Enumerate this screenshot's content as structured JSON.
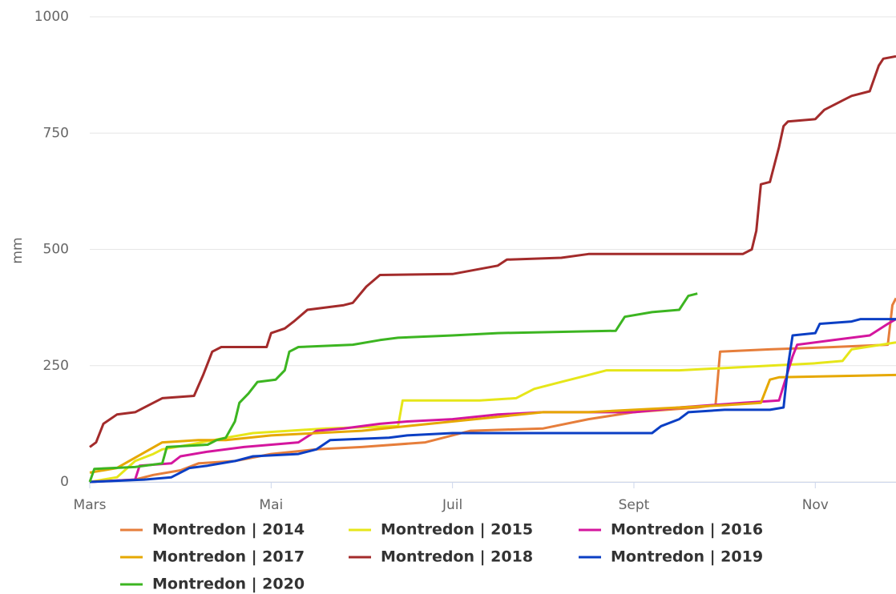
{
  "chart_data": {
    "type": "line",
    "ylabel": "mm",
    "xlim": [
      0,
      8.89
    ],
    "xticks": [
      {
        "value": 0,
        "label": "Mars"
      },
      {
        "value": 2,
        "label": "Mai"
      },
      {
        "value": 4,
        "label": "Juil"
      },
      {
        "value": 6,
        "label": "Sept"
      },
      {
        "value": 8,
        "label": "Nov"
      }
    ],
    "ylim": [
      0,
      1000
    ],
    "yticks": [
      0,
      250,
      500,
      750,
      1000
    ],
    "grid": true,
    "legend": "bottom",
    "series": [
      {
        "name": "Montredon | 2014",
        "color": "#e67e3b",
        "x": [
          0,
          0.5,
          0.7,
          1.0,
          1.2,
          1.6,
          2.0,
          2.5,
          3.0,
          3.7,
          4.2,
          5.0,
          5.5,
          6.0,
          6.7,
          6.9,
          6.95,
          7.5,
          8.2,
          8.8,
          8.85,
          8.89
        ],
        "values": [
          0,
          5,
          15,
          25,
          40,
          45,
          60,
          70,
          75,
          85,
          110,
          115,
          135,
          150,
          160,
          165,
          280,
          285,
          290,
          295,
          380,
          395
        ]
      },
      {
        "name": "Montredon | 2015",
        "color": "#e6e619",
        "x": [
          0,
          0.3,
          0.5,
          0.7,
          0.8,
          1.1,
          1.5,
          1.8,
          2.2,
          2.6,
          3.4,
          3.45,
          4.3,
          4.7,
          4.9,
          5.2,
          5.5,
          5.7,
          6.5,
          7.0,
          7.5,
          8.0,
          8.3,
          8.4,
          8.89
        ],
        "values": [
          0,
          10,
          45,
          60,
          70,
          80,
          95,
          105,
          110,
          115,
          120,
          175,
          175,
          180,
          200,
          215,
          230,
          240,
          240,
          245,
          250,
          255,
          260,
          285,
          300
        ]
      },
      {
        "name": "Montredon | 2016",
        "color": "#d4169e",
        "x": [
          0,
          0.5,
          0.55,
          0.9,
          1.0,
          1.3,
          1.7,
          2.3,
          2.5,
          2.8,
          3.2,
          3.5,
          4.0,
          4.5,
          5.0,
          6.0,
          6.5,
          7.2,
          7.6,
          7.75,
          7.8,
          8.2,
          8.6,
          8.8,
          8.89
        ],
        "values": [
          0,
          5,
          35,
          40,
          55,
          65,
          75,
          85,
          110,
          115,
          125,
          130,
          135,
          145,
          150,
          150,
          160,
          170,
          175,
          270,
          295,
          305,
          315,
          340,
          350
        ]
      },
      {
        "name": "Montredon | 2017",
        "color": "#e6a800",
        "x": [
          0,
          0.3,
          0.8,
          1.2,
          1.5,
          2.0,
          2.5,
          3.0,
          3.5,
          4.0,
          4.5,
          5.0,
          5.5,
          6.0,
          6.5,
          7.0,
          7.4,
          7.5,
          7.6,
          8.89
        ],
        "values": [
          20,
          30,
          85,
          90,
          90,
          100,
          105,
          110,
          120,
          130,
          140,
          150,
          150,
          155,
          160,
          165,
          170,
          220,
          225,
          230
        ]
      },
      {
        "name": "Montredon | 2018",
        "color": "#a32b2b",
        "x": [
          0,
          0.07,
          0.15,
          0.3,
          0.5,
          0.8,
          1.15,
          1.25,
          1.35,
          1.45,
          1.95,
          2.0,
          2.15,
          2.25,
          2.4,
          2.8,
          2.9,
          3.05,
          3.2,
          4.0,
          4.5,
          4.6,
          5.2,
          5.5,
          6.0,
          7.2,
          7.3,
          7.35,
          7.4,
          7.5,
          7.6,
          7.65,
          7.7,
          8.0,
          8.1,
          8.3,
          8.4,
          8.6,
          8.7,
          8.75,
          8.89
        ],
        "values": [
          75,
          85,
          125,
          145,
          150,
          180,
          185,
          230,
          280,
          290,
          290,
          320,
          330,
          345,
          370,
          380,
          385,
          420,
          445,
          447,
          465,
          478,
          482,
          490,
          490,
          490,
          500,
          540,
          640,
          645,
          720,
          765,
          775,
          780,
          800,
          820,
          830,
          840,
          895,
          910,
          915
        ]
      },
      {
        "name": "Montredon | 2019",
        "color": "#0b3fc4",
        "x": [
          0,
          0.6,
          0.9,
          1.1,
          1.3,
          1.6,
          1.8,
          2.3,
          2.5,
          2.65,
          3.3,
          3.5,
          4.0,
          5.0,
          6.2,
          6.3,
          6.5,
          6.6,
          7.0,
          7.5,
          7.65,
          7.7,
          7.75,
          8.0,
          8.05,
          8.4,
          8.5,
          8.89
        ],
        "values": [
          0,
          5,
          10,
          30,
          35,
          45,
          55,
          60,
          70,
          90,
          95,
          100,
          105,
          105,
          105,
          120,
          135,
          150,
          155,
          155,
          160,
          250,
          315,
          320,
          340,
          345,
          350,
          350
        ]
      },
      {
        "name": "Montredon | 2020",
        "color": "#3cb521",
        "x": [
          0,
          0.05,
          0.5,
          0.8,
          0.85,
          1.3,
          1.4,
          1.5,
          1.6,
          1.65,
          1.75,
          1.85,
          2.05,
          2.15,
          2.2,
          2.3,
          2.9,
          3.2,
          3.4,
          4.0,
          4.5,
          5.8,
          5.9,
          6.2,
          6.5,
          6.6,
          6.7
        ],
        "values": [
          0,
          28,
          32,
          40,
          75,
          80,
          90,
          95,
          130,
          170,
          190,
          215,
          220,
          240,
          280,
          290,
          295,
          305,
          310,
          315,
          320,
          325,
          355,
          365,
          370,
          400,
          405
        ]
      }
    ]
  }
}
